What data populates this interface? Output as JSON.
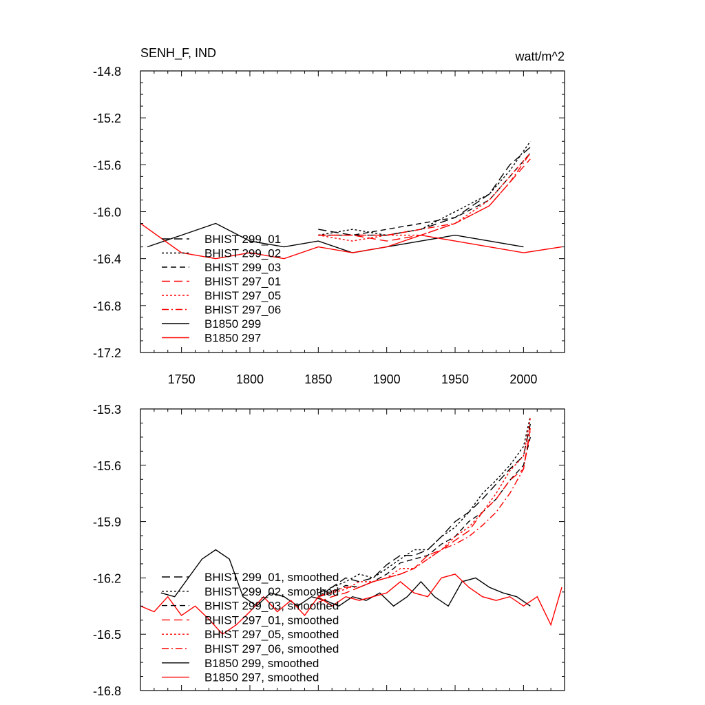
{
  "chart_data": [
    {
      "type": "line",
      "title": "SENH_F, IND",
      "units": "watt/m^2",
      "xlim": [
        1720,
        2030
      ],
      "ylim": [
        -17.2,
        -14.8
      ],
      "x_ticks": [
        1750,
        1800,
        1850,
        1900,
        1950,
        2000
      ],
      "y_ticks": [
        -14.8,
        -15.2,
        -15.6,
        -16.0,
        -16.4,
        -16.8,
        -17.2
      ],
      "y_tick_labels": [
        "-14.8",
        "-15.2",
        "-15.6",
        "-16.0",
        "-16.4",
        "-16.8",
        "-17.2"
      ],
      "x_tick_labels": [
        "1750",
        "1800",
        "1850",
        "1900",
        "1950",
        "2000"
      ],
      "legend_position": "lower-left",
      "series": [
        {
          "name": "BHIST 299_01",
          "color": "#000000",
          "dash": "long-dash",
          "x": [
            1850,
            1875,
            1900,
            1925,
            1950,
            1975,
            1990,
            2005
          ],
          "values": [
            -16.15,
            -16.2,
            -16.2,
            -16.15,
            -16.05,
            -15.85,
            -15.6,
            -15.45
          ]
        },
        {
          "name": "BHIST 299_02",
          "color": "#000000",
          "dash": "dot",
          "x": [
            1850,
            1875,
            1900,
            1925,
            1950,
            1975,
            1990,
            2005
          ],
          "values": [
            -16.2,
            -16.15,
            -16.2,
            -16.15,
            -16.0,
            -15.85,
            -15.65,
            -15.4
          ]
        },
        {
          "name": "BHIST 299_03",
          "color": "#000000",
          "dash": "dash",
          "x": [
            1850,
            1875,
            1900,
            1925,
            1950,
            1975,
            1990,
            2005
          ],
          "values": [
            -16.2,
            -16.2,
            -16.15,
            -16.1,
            -16.05,
            -15.9,
            -15.7,
            -15.5
          ]
        },
        {
          "name": "BHIST 297_01",
          "color": "#ff0000",
          "dash": "long-dash",
          "x": [
            1850,
            1875,
            1900,
            1925,
            1950,
            1975,
            1990,
            2005
          ],
          "values": [
            -16.2,
            -16.2,
            -16.25,
            -16.2,
            -16.1,
            -15.95,
            -15.75,
            -15.55
          ]
        },
        {
          "name": "BHIST 297_05",
          "color": "#ff0000",
          "dash": "dot",
          "x": [
            1850,
            1875,
            1900,
            1925,
            1950,
            1975,
            1990,
            2005
          ],
          "values": [
            -16.2,
            -16.25,
            -16.2,
            -16.2,
            -16.1,
            -15.9,
            -15.7,
            -15.5
          ]
        },
        {
          "name": "BHIST 297_06",
          "color": "#ff0000",
          "dash": "dash-dot",
          "x": [
            1850,
            1875,
            1900,
            1925,
            1950,
            1975,
            1990,
            2005
          ],
          "values": [
            -16.2,
            -16.2,
            -16.2,
            -16.15,
            -16.1,
            -15.95,
            -15.75,
            -15.5
          ]
        },
        {
          "name": "B1850 299",
          "color": "#000000",
          "dash": "solid",
          "x": [
            1725,
            1750,
            1775,
            1800,
            1825,
            1850,
            1875,
            1900,
            1925,
            1950,
            1975,
            2000
          ],
          "values": [
            -16.3,
            -16.2,
            -16.1,
            -16.25,
            -16.3,
            -16.25,
            -16.35,
            -16.3,
            -16.25,
            -16.2,
            -16.25,
            -16.3
          ]
        },
        {
          "name": "B1850 297",
          "color": "#ff0000",
          "dash": "solid",
          "x": [
            1720,
            1750,
            1775,
            1800,
            1825,
            1850,
            1875,
            1900,
            1925,
            1950,
            1975,
            2000,
            2028
          ],
          "values": [
            -16.1,
            -16.35,
            -16.4,
            -16.35,
            -16.4,
            -16.3,
            -16.35,
            -16.3,
            -16.2,
            -16.25,
            -16.3,
            -16.35,
            -16.3
          ]
        }
      ]
    },
    {
      "type": "line",
      "xlim": [
        1720,
        2030
      ],
      "ylim": [
        -16.8,
        -15.3
      ],
      "x_ticks": [
        1750,
        1800,
        1850,
        1900,
        1950,
        2000
      ],
      "y_ticks": [
        -15.3,
        -15.6,
        -15.9,
        -16.2,
        -16.5,
        -16.8
      ],
      "y_tick_labels": [
        "-15.3",
        "-15.6",
        "-15.9",
        "-16.2",
        "-16.5",
        "-16.8"
      ],
      "legend_position": "lower-left",
      "series": [
        {
          "name": "BHIST 299_01, smoothed",
          "color": "#000000",
          "dash": "long-dash",
          "x": [
            1850,
            1860,
            1870,
            1880,
            1890,
            1900,
            1910,
            1920,
            1930,
            1940,
            1950,
            1960,
            1970,
            1980,
            1990,
            2000,
            2005
          ],
          "values": [
            -16.28,
            -16.25,
            -16.2,
            -16.22,
            -16.2,
            -16.13,
            -16.08,
            -16.08,
            -16.05,
            -15.98,
            -15.9,
            -15.85,
            -15.78,
            -15.7,
            -15.62,
            -15.55,
            -15.38
          ]
        },
        {
          "name": "BHIST 299_02, smoothed",
          "color": "#000000",
          "dash": "dot",
          "x": [
            1850,
            1860,
            1870,
            1880,
            1890,
            1900,
            1910,
            1920,
            1930,
            1940,
            1950,
            1960,
            1970,
            1980,
            1990,
            2000,
            2005
          ],
          "values": [
            -16.3,
            -16.25,
            -16.22,
            -16.18,
            -16.2,
            -16.15,
            -16.1,
            -16.05,
            -16.05,
            -15.98,
            -15.93,
            -15.85,
            -15.75,
            -15.68,
            -15.6,
            -15.5,
            -15.34
          ]
        },
        {
          "name": "BHIST 299_03, smoothed",
          "color": "#000000",
          "dash": "dash",
          "x": [
            1850,
            1860,
            1870,
            1880,
            1890,
            1900,
            1910,
            1920,
            1930,
            1940,
            1950,
            1960,
            1970,
            1980,
            1990,
            2000,
            2005
          ],
          "values": [
            -16.3,
            -16.28,
            -16.24,
            -16.25,
            -16.22,
            -16.18,
            -16.12,
            -16.1,
            -16.08,
            -16.02,
            -15.98,
            -15.9,
            -15.85,
            -15.78,
            -15.68,
            -15.6,
            -15.45
          ]
        },
        {
          "name": "BHIST 297_01, smoothed",
          "color": "#ff0000",
          "dash": "long-dash",
          "x": [
            1850,
            1860,
            1870,
            1880,
            1890,
            1900,
            1910,
            1920,
            1930,
            1940,
            1950,
            1960,
            1970,
            1980,
            1990,
            2000,
            2005
          ],
          "values": [
            -16.33,
            -16.3,
            -16.28,
            -16.25,
            -16.22,
            -16.2,
            -16.18,
            -16.15,
            -16.08,
            -16.05,
            -16.0,
            -15.95,
            -15.85,
            -15.78,
            -15.68,
            -15.62,
            -15.4
          ]
        },
        {
          "name": "BHIST 297_05, smoothed",
          "color": "#ff0000",
          "dash": "dot",
          "x": [
            1850,
            1860,
            1870,
            1880,
            1890,
            1900,
            1910,
            1920,
            1930,
            1940,
            1950,
            1960,
            1970,
            1980,
            1990,
            2000,
            2005
          ],
          "values": [
            -16.3,
            -16.28,
            -16.26,
            -16.22,
            -16.22,
            -16.2,
            -16.15,
            -16.15,
            -16.1,
            -16.05,
            -15.98,
            -15.93,
            -15.85,
            -15.75,
            -15.63,
            -15.55,
            -15.35
          ]
        },
        {
          "name": "BHIST 297_06, smoothed",
          "color": "#ff0000",
          "dash": "dash-dot",
          "x": [
            1850,
            1860,
            1870,
            1880,
            1890,
            1900,
            1910,
            1920,
            1930,
            1940,
            1950,
            1960,
            1970,
            1980,
            1990,
            2000,
            2005
          ],
          "values": [
            -16.3,
            -16.27,
            -16.25,
            -16.25,
            -16.22,
            -16.2,
            -16.18,
            -16.15,
            -16.1,
            -16.05,
            -16.02,
            -15.98,
            -15.92,
            -15.85,
            -15.75,
            -15.62,
            -15.42
          ]
        },
        {
          "name": "B1850 299, smoothed",
          "color": "#000000",
          "dash": "solid",
          "x": [
            1735,
            1745,
            1755,
            1765,
            1775,
            1785,
            1795,
            1805,
            1815,
            1825,
            1835,
            1845,
            1855,
            1865,
            1875,
            1885,
            1895,
            1905,
            1915,
            1925,
            1935,
            1945,
            1955,
            1965,
            1975,
            1985,
            1995,
            2005
          ],
          "values": [
            -16.28,
            -16.3,
            -16.2,
            -16.1,
            -16.05,
            -16.1,
            -16.3,
            -16.35,
            -16.28,
            -16.3,
            -16.35,
            -16.3,
            -16.32,
            -16.35,
            -16.3,
            -16.32,
            -16.28,
            -16.35,
            -16.3,
            -16.22,
            -16.3,
            -16.35,
            -16.22,
            -16.2,
            -16.25,
            -16.28,
            -16.3,
            -16.35
          ]
        },
        {
          "name": "B1850 297, smoothed",
          "color": "#ff0000",
          "dash": "solid",
          "x": [
            1720,
            1730,
            1740,
            1750,
            1760,
            1770,
            1780,
            1790,
            1800,
            1810,
            1820,
            1830,
            1840,
            1850,
            1860,
            1870,
            1880,
            1890,
            1900,
            1910,
            1920,
            1930,
            1940,
            1950,
            1960,
            1970,
            1980,
            1990,
            2000,
            2010,
            2020,
            2028
          ],
          "values": [
            -16.35,
            -16.38,
            -16.3,
            -16.4,
            -16.35,
            -16.42,
            -16.5,
            -16.45,
            -16.38,
            -16.3,
            -16.38,
            -16.32,
            -16.4,
            -16.3,
            -16.35,
            -16.3,
            -16.32,
            -16.3,
            -16.28,
            -16.22,
            -16.28,
            -16.3,
            -16.2,
            -16.18,
            -16.25,
            -16.3,
            -16.32,
            -16.3,
            -16.35,
            -16.3,
            -16.45,
            -16.25
          ]
        }
      ]
    }
  ]
}
